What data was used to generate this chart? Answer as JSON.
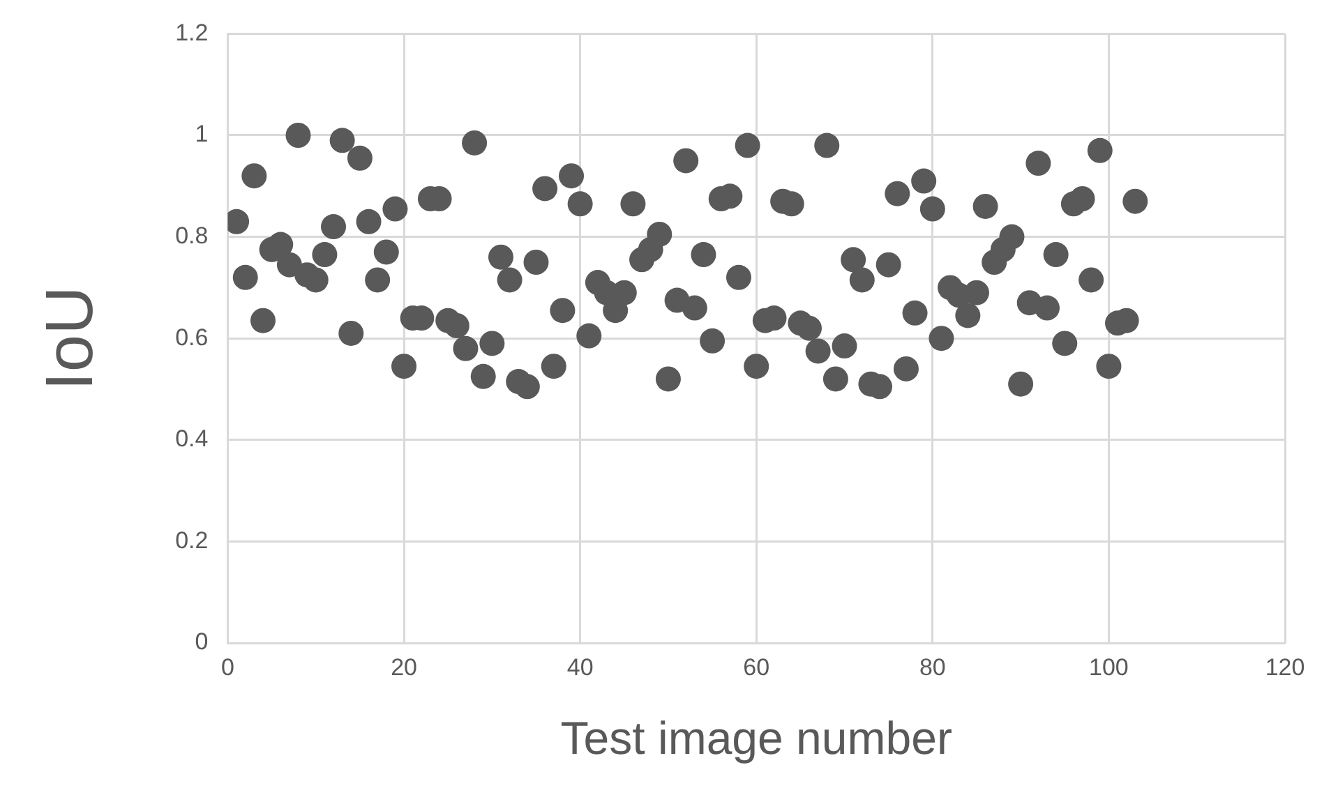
{
  "chart_data": {
    "type": "scatter",
    "xlabel": "Test image number",
    "ylabel": "IoU",
    "x": [
      1,
      2,
      3,
      4,
      5,
      6,
      7,
      8,
      9,
      10,
      11,
      12,
      13,
      14,
      15,
      16,
      17,
      18,
      19,
      20,
      21,
      22,
      23,
      24,
      25,
      26,
      27,
      28,
      29,
      30,
      31,
      32,
      33,
      34,
      35,
      36,
      37,
      38,
      39,
      40,
      41,
      42,
      43,
      44,
      45,
      46,
      47,
      48,
      49,
      50,
      51,
      52,
      53,
      54,
      55,
      56,
      57,
      58,
      59,
      60,
      61,
      62,
      63,
      64,
      65,
      66,
      67,
      68,
      69,
      70,
      71,
      72,
      73,
      74,
      75,
      76,
      77,
      78,
      79,
      80,
      81,
      82,
      83,
      84,
      85,
      86,
      87,
      88,
      89,
      90,
      91,
      92,
      93,
      94,
      95,
      96,
      97,
      98,
      99,
      100,
      101,
      102,
      103
    ],
    "series": [
      {
        "color": "#595959",
        "values": [
          0.83,
          0.72,
          0.92,
          0.635,
          0.775,
          0.785,
          0.745,
          1.0,
          0.725,
          0.715,
          0.765,
          0.82,
          0.99,
          0.61,
          0.955,
          0.83,
          0.715,
          0.77,
          0.855,
          0.545,
          0.64,
          0.64,
          0.875,
          0.875,
          0.635,
          0.625,
          0.58,
          0.985,
          0.525,
          0.59,
          0.76,
          0.715,
          0.515,
          0.505,
          0.75,
          0.895,
          0.545,
          0.655,
          0.92,
          0.865,
          0.605,
          0.71,
          0.69,
          0.655,
          0.69,
          0.865,
          0.755,
          0.775,
          0.805,
          0.52,
          0.675,
          0.95,
          0.66,
          0.765,
          0.595,
          0.875,
          0.88,
          0.72,
          0.98,
          0.545,
          0.635,
          0.64,
          0.87,
          0.865,
          0.63,
          0.62,
          0.575,
          0.98,
          0.52,
          0.585,
          0.755,
          0.715,
          0.51,
          0.505,
          0.745,
          0.885,
          0.54,
          0.65,
          0.91,
          0.855,
          0.6,
          0.7,
          0.685,
          0.645,
          0.69,
          0.86,
          0.75,
          0.775,
          0.8,
          0.51,
          0.67,
          0.945,
          0.66,
          0.765,
          0.59,
          0.865,
          0.875,
          0.715,
          0.97,
          0.545,
          0.63,
          0.635,
          0.87
        ]
      }
    ],
    "xlim": [
      0,
      120
    ],
    "xticks": [
      0,
      20,
      40,
      60,
      80,
      100,
      120
    ],
    "ylim": [
      0,
      1.2
    ],
    "yticks": [
      0,
      0.2,
      0.4,
      0.6,
      0.8,
      1,
      1.2
    ],
    "grid": true,
    "legend": false,
    "marker": "circle"
  }
}
